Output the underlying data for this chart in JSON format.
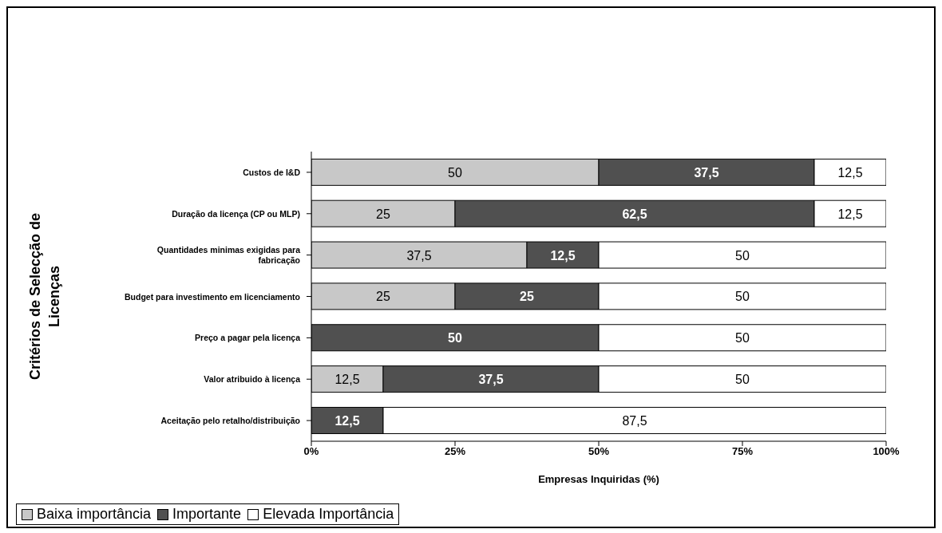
{
  "chart_data": {
    "type": "bar",
    "orientation": "horizontal",
    "stacked": true,
    "xlabel": "Empresas Inquiridas (%)",
    "ylabel": "Critérios de Selecção de Licenças",
    "categories": [
      "Custos de I&D",
      "Duração da licença (CP ou MLP)",
      "Quantidades minimas exigidas para fabricação",
      "Budget para investimento em licenciamento",
      "Preço a pagar pela licença",
      "Valor atribuido à licença",
      "Aceitação pelo retalho/distribuição"
    ],
    "series": [
      {
        "name": "Baixa importância",
        "color": "#c8c8c8",
        "values": [
          50,
          25,
          37.5,
          25,
          0,
          12.5,
          0
        ],
        "value_labels": [
          "50",
          "25",
          "37,5",
          "25",
          null,
          "12,5",
          null
        ]
      },
      {
        "name": "Importante",
        "color": "#505050",
        "values": [
          37.5,
          62.5,
          12.5,
          25,
          50,
          37.5,
          12.5
        ],
        "value_labels": [
          "37,5",
          "62,5",
          "12,5",
          "25",
          "50",
          "37,5",
          "12,5"
        ]
      },
      {
        "name": "Elevada Importância",
        "color": "#ffffff",
        "values": [
          12.5,
          12.5,
          50,
          50,
          50,
          50,
          87.5
        ],
        "value_labels": [
          "12,5",
          "12,5",
          "50",
          "50",
          "50",
          "50",
          "87,5"
        ]
      }
    ],
    "xlim": [
      0,
      100
    ],
    "xticks": [
      {
        "value": 0,
        "label": "0%"
      },
      {
        "value": 25,
        "label": "25%"
      },
      {
        "value": 50,
        "label": "50%"
      },
      {
        "value": 75,
        "label": "75%"
      },
      {
        "value": 100,
        "label": "100%"
      }
    ],
    "legend": "bottom left",
    "grid": false
  }
}
